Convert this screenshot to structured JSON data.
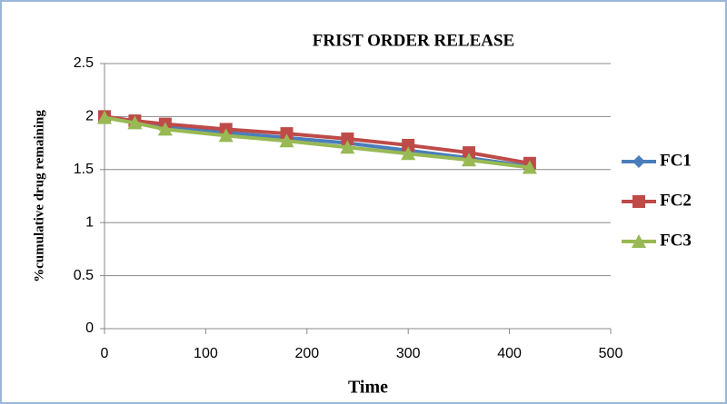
{
  "chart_data": {
    "type": "line",
    "title": "FRIST ORDER RELEASE",
    "x_label": "Time",
    "y_label": "%cumulative drug remaining",
    "x": [
      0,
      30,
      60,
      120,
      180,
      240,
      300,
      360,
      420
    ],
    "series": [
      {
        "name": "FC1",
        "color": "#4a7ebb",
        "marker": "diamond",
        "values": [
          2.0,
          1.95,
          1.9,
          1.85,
          1.8,
          1.75,
          1.68,
          1.61,
          1.53
        ]
      },
      {
        "name": "FC2",
        "color": "#be4b48",
        "marker": "square",
        "values": [
          2.0,
          1.96,
          1.93,
          1.88,
          1.84,
          1.79,
          1.73,
          1.66,
          1.56
        ]
      },
      {
        "name": "FC3",
        "color": "#98b954",
        "marker": "triangle",
        "values": [
          1.99,
          1.94,
          1.88,
          1.82,
          1.77,
          1.71,
          1.65,
          1.59,
          1.52
        ]
      }
    ],
    "xlim": [
      0,
      500
    ],
    "xticks": [
      0,
      100,
      200,
      300,
      400,
      500
    ],
    "ylim": [
      0,
      2.5
    ],
    "yticks": [
      0,
      0.5,
      1,
      1.5,
      2,
      2.5
    ],
    "grid": true,
    "legend": "right"
  }
}
